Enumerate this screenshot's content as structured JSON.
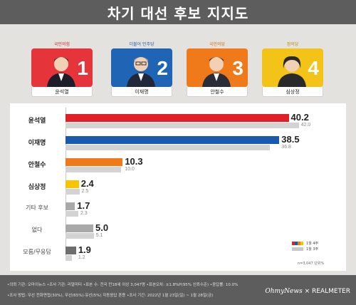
{
  "title": "차기 대선 후보 지지도",
  "candidates": [
    {
      "party": "국민의힘",
      "name": "윤석열",
      "number": "1",
      "color": "#e6343b",
      "party_color": "#d0262c"
    },
    {
      "party": "더불어 민주당",
      "name": "이재명",
      "number": "2",
      "color": "#1f64b5",
      "party_color": "#1f5fb0"
    },
    {
      "party": "국민의당",
      "name": "안철수",
      "number": "3",
      "color": "#f07a1a",
      "party_color": "#e36a00"
    },
    {
      "party": "정의당",
      "name": "심상정",
      "number": "4",
      "color": "#f4c318",
      "party_color": "#b89000"
    }
  ],
  "chart_data": {
    "type": "bar",
    "orientation": "horizontal",
    "categories": [
      "윤석열",
      "이재명",
      "안철수",
      "심상정",
      "기타 후보",
      "없다",
      "모름/무응답"
    ],
    "series": [
      {
        "name": "1월 4주",
        "values": [
          40.2,
          38.5,
          10.3,
          2.4,
          1.7,
          5.0,
          1.9
        ]
      },
      {
        "name": "1월 3주",
        "values": [
          42.0,
          36.8,
          10.0,
          2.5,
          2.3,
          5.1,
          1.2
        ]
      }
    ],
    "current_labels": [
      "40.2",
      "38.5",
      "10.3",
      "2.4",
      "1.7",
      "5.0",
      "1.9"
    ],
    "previous_labels": [
      "42.0",
      "36.8",
      "10.0",
      "2.5",
      "2.3",
      "5.1",
      "1.2"
    ],
    "bar_colors": [
      "#e21f26",
      "#1a5aad",
      "#f07a1a",
      "#f6c500",
      "#a9a9a9",
      "#a9a9a9",
      "#6e6e6e"
    ],
    "previous_color": "#d3d3d3",
    "xlim": [
      0,
      45
    ],
    "grid": false,
    "legend_position": "bottom-right",
    "sample_note": "n=3,047 단위%"
  },
  "legend": {
    "current": "1월 4주",
    "previous": "1월 3주",
    "current_colors": [
      "#e21f26",
      "#1a5aad",
      "#f07a1a",
      "#f6c500"
    ],
    "previous_color": "#c8c8c8"
  },
  "footer": {
    "line1": "•의뢰 기관: 오마이뉴스 •조사 기관: 리얼미터 •표본 수: 전국 만18세 이상 3,047명 •표본오차: ±1.8%P(95% 신뢰수준) •응답률: 10.0%",
    "line2": "•조사 방법: 무선 전화면접(30%), 무선(65%)·유선(5%) 자동응답 혼용 •조사 기간: 2022년 1월 23일(일) ~ 1월 28일(금)",
    "brand_left": "OhmyNews",
    "brand_sep": "×",
    "brand_right": "REALMETER"
  }
}
